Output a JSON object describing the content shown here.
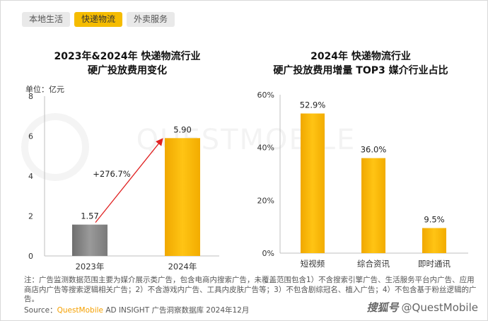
{
  "tabs": [
    {
      "label": "本地生活",
      "active": false
    },
    {
      "label": "快递物流",
      "active": true
    },
    {
      "label": "外卖服务",
      "active": false
    }
  ],
  "watermark": "QUESTMOBILE",
  "chart_data": [
    {
      "type": "bar",
      "title_lines": [
        "2023年&2024年 快递物流行业",
        "硬广投放费用变化"
      ],
      "unit_label": "单位：亿元",
      "categories": [
        "2023年",
        "2024年"
      ],
      "values": [
        1.57,
        5.9
      ],
      "value_labels": [
        "1.57",
        "5.90"
      ],
      "ylim": [
        0,
        8
      ],
      "yticks": [
        "0",
        "2",
        "4",
        "6",
        "8"
      ],
      "bar_colors": [
        "#888888",
        "#f5b800"
      ],
      "growth_annotation": "+276.7%",
      "grid": false
    },
    {
      "type": "bar",
      "title_lines": [
        "2024年 快递物流行业",
        "硬广投放费用增量 TOP3 媒介行业占比"
      ],
      "categories": [
        "短视频",
        "综合资讯",
        "即时通讯"
      ],
      "values": [
        52.9,
        36.0,
        9.5
      ],
      "value_labels": [
        "52.9%",
        "36.0%",
        "9.5%"
      ],
      "ylim": [
        0,
        60
      ],
      "yticks": [
        "0%",
        "20%",
        "40%",
        "60%"
      ],
      "bar_color": "#f5b800",
      "grid": false
    }
  ],
  "footnote": "注：广告监测数据范围主要为媒介展示类广告，包含电商内搜索广告，未覆盖范围包含1）不含搜索引擎广告、生活服务平台内广告、应用商店内广告等搜索逻辑相关广告；2）不含游戏内广告、工具内皮肤广告等；3）不包含剧综冠名、植入广告；4）不包含基于粉丝逻辑的广告。",
  "source": {
    "prefix": "Source：",
    "brand": "QuestMobile",
    "rest": " AD INSIGHT 广告洞察数据库 2024年12月"
  },
  "brand_mark": {
    "logo_text": "搜狐号",
    "handle": "@QuestMobile"
  }
}
